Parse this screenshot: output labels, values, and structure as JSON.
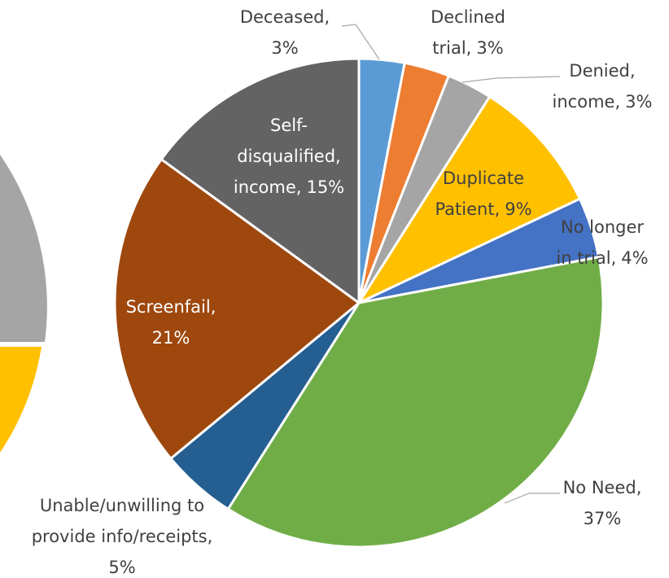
{
  "chart_data": {
    "type": "pie",
    "categories": [
      "Deceased,",
      "Declined\ntrial,",
      "Denied,\nincome,",
      "Duplicate\nPatient,",
      "No longer\nin trial,",
      "No Need,",
      "Unable/unwilling to\nprovide info/receipts,",
      "Screenfail,",
      "Self-\ndisqualified,\nincome,"
    ],
    "values": [
      3,
      3,
      3,
      9,
      4,
      37,
      5,
      21,
      15
    ],
    "value_labels": [
      "3%",
      "3%",
      "3%",
      "9%",
      "4%",
      "37%",
      "5%",
      "21%",
      "15%"
    ],
    "colors": [
      "#5b9bd5",
      "#ed7d31",
      "#a5a5a5",
      "#ffc000",
      "#4472c4",
      "#70ad47",
      "#255e91",
      "#9e480e",
      "#636363"
    ]
  }
}
